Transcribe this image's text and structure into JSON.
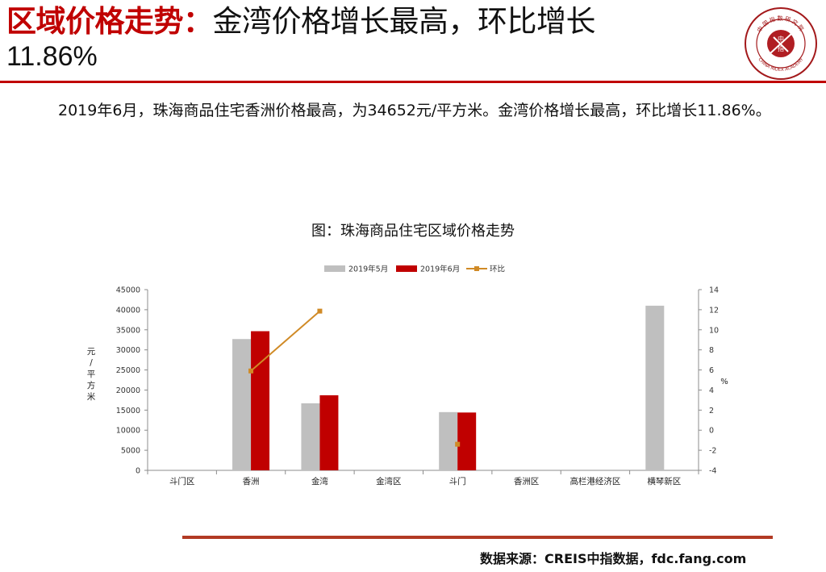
{
  "header": {
    "title_red": "区域价格走势：",
    "title_black": "金湾价格增长最高，环比增长",
    "title_line2": "11.86%"
  },
  "logo": {
    "text_top": "中国指数研究院",
    "text_center_1": "中",
    "text_center_2": "指",
    "text_bottom": "CHINA INDEX ACADEMY",
    "icon": "seal-logo-icon"
  },
  "body": {
    "paragraph": "2019年6月，珠海商品住宅香洲价格最高，为34652元/平方米。金湾价格增长最高，环比增长11.86%。"
  },
  "colors": {
    "accent": "#c00000",
    "may": "#bfbfbf",
    "june": "#c00000",
    "mom": "#d08a26"
  },
  "chart_data": {
    "type": "bar",
    "title": "图：珠海商品住宅区域价格走势",
    "categories": [
      "斗门区",
      "香洲",
      "金湾",
      "金湾区",
      "斗门",
      "香洲区",
      "高栏港经济区",
      "横琴新区"
    ],
    "series": [
      {
        "name": "2019年5月",
        "type": "bar",
        "axis": "left",
        "values": [
          null,
          32700,
          16700,
          null,
          14500,
          null,
          null,
          41000
        ]
      },
      {
        "name": "2019年6月",
        "type": "bar",
        "axis": "left",
        "values": [
          null,
          34652,
          18700,
          null,
          14400,
          null,
          null,
          null
        ]
      },
      {
        "name": "环比",
        "type": "line",
        "axis": "right",
        "values": [
          null,
          5.9,
          11.86,
          null,
          -1.4,
          null,
          null,
          null
        ]
      }
    ],
    "ylabel": "元/平方米",
    "y2label": "%",
    "ylim": [
      0,
      45000
    ],
    "yticks": [
      0,
      5000,
      10000,
      15000,
      20000,
      25000,
      30000,
      35000,
      40000,
      45000
    ],
    "y2lim": [
      -4,
      14
    ],
    "y2ticks": [
      -4,
      -2,
      0,
      2,
      4,
      6,
      8,
      10,
      12,
      14
    ],
    "legend": "top-center",
    "grid": false
  },
  "footer": {
    "source": "数据来源：CREIS中指数据，fdc.fang.com"
  }
}
